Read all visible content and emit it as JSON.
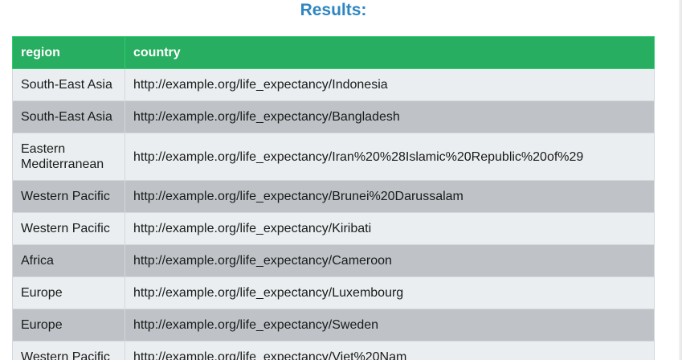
{
  "results_title": "Results:",
  "columns": {
    "region": "region",
    "country": "country"
  },
  "rows": [
    {
      "region": "South-East Asia",
      "country": "http://example.org/life_expectancy/Indonesia"
    },
    {
      "region": "South-East Asia",
      "country": "http://example.org/life_expectancy/Bangladesh"
    },
    {
      "region": "Eastern Mediterranean",
      "country": "http://example.org/life_expectancy/Iran%20%28Islamic%20Republic%20of%29"
    },
    {
      "region": "Western Pacific",
      "country": "http://example.org/life_expectancy/Brunei%20Darussalam"
    },
    {
      "region": "Western Pacific",
      "country": "http://example.org/life_expectancy/Kiribati"
    },
    {
      "region": "Africa",
      "country": "http://example.org/life_expectancy/Cameroon"
    },
    {
      "region": "Europe",
      "country": "http://example.org/life_expectancy/Luxembourg"
    },
    {
      "region": "Europe",
      "country": "http://example.org/life_expectancy/Sweden"
    },
    {
      "region": "Western Pacific",
      "country": "http://example.org/life_expectancy/Viet%20Nam"
    }
  ],
  "colors": {
    "title": "#2e86c1",
    "header_bg": "#27ae60",
    "row_light": "#eaeef0",
    "row_dark": "#bfc3c7"
  }
}
